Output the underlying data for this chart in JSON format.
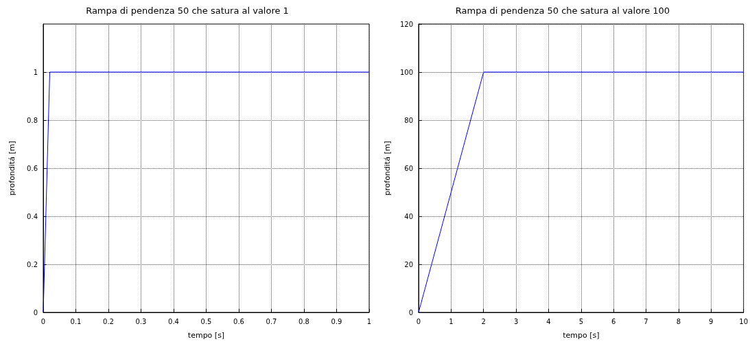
{
  "chart_data": [
    {
      "type": "line",
      "title": "Rampa di pendenza 50 che satura al valore 1",
      "xlabel": "tempo [s]",
      "ylabel": "profonditá [m]",
      "x": [
        0,
        0.02,
        1
      ],
      "series": [
        {
          "color": "#0000ff",
          "values": [
            0,
            1,
            1
          ]
        }
      ],
      "xlim": [
        0,
        1
      ],
      "xticks": [
        0,
        0.1,
        0.2,
        0.3,
        0.4,
        0.5,
        0.6,
        0.7,
        0.8,
        0.9,
        1
      ],
      "ylim": [
        0,
        1.2
      ],
      "yticks": [
        0,
        0.2,
        0.4,
        0.6,
        0.8,
        1
      ],
      "grid": true,
      "line_style": "solid",
      "marker": "none"
    },
    {
      "type": "line",
      "title": "Rampa di pendenza 50 che satura al valore 100",
      "xlabel": "tempo [s]",
      "ylabel": "profonditá [m]",
      "x": [
        0,
        2,
        10
      ],
      "series": [
        {
          "color": "#0000ff",
          "values": [
            0,
            100,
            100
          ]
        }
      ],
      "xlim": [
        0,
        10
      ],
      "xticks": [
        0,
        1,
        2,
        3,
        4,
        5,
        6,
        7,
        8,
        9,
        10
      ],
      "ylim": [
        0,
        120
      ],
      "yticks": [
        0,
        20,
        40,
        60,
        80,
        100,
        120
      ],
      "grid": true,
      "line_style": "solid",
      "marker": "none"
    }
  ]
}
